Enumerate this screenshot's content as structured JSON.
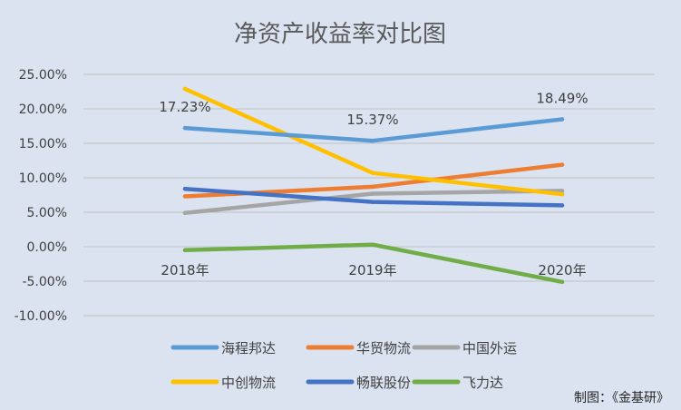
{
  "chart_data": {
    "type": "line",
    "title": "净资产收益率对比图",
    "categories": [
      "2018年",
      "2019年",
      "2020年"
    ],
    "y_ticks": [
      "25.00%",
      "20.00%",
      "15.00%",
      "10.00%",
      "5.00%",
      "0.00%",
      "-5.00%",
      "-10.00%"
    ],
    "ylim": [
      -10,
      25
    ],
    "grid": true,
    "legend_position": "bottom",
    "series": [
      {
        "name": "海程邦达",
        "color": "#5b9bd5",
        "values": [
          17.23,
          15.37,
          18.49
        ]
      },
      {
        "name": "华贸物流",
        "color": "#ed7d31",
        "values": [
          7.3,
          8.7,
          11.9
        ]
      },
      {
        "name": "中国外运",
        "color": "#a5a5a5",
        "values": [
          4.9,
          7.7,
          8.1
        ]
      },
      {
        "name": "中创物流",
        "color": "#ffc000",
        "values": [
          22.9,
          10.7,
          7.6
        ]
      },
      {
        "name": "畅联股份",
        "color": "#4472c4",
        "values": [
          8.4,
          6.5,
          6.0
        ]
      },
      {
        "name": "飞力达",
        "color": "#70ad47",
        "values": [
          -0.5,
          0.3,
          -5.1
        ]
      }
    ],
    "data_labels": [
      {
        "series": 0,
        "index": 0,
        "text": "17.23%"
      },
      {
        "series": 0,
        "index": 1,
        "text": "15.37%"
      },
      {
        "series": 0,
        "index": 2,
        "text": "18.49%"
      }
    ]
  },
  "credit": "制图：《金基研》"
}
